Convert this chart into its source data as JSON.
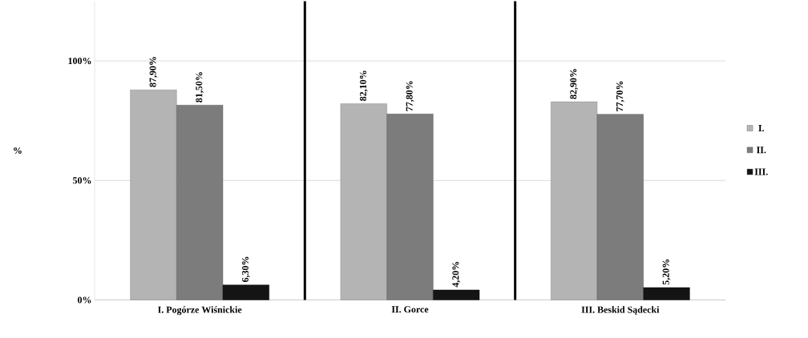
{
  "chart_data": {
    "type": "bar",
    "ylabel": "%",
    "categories": [
      "I. Pogórze Wiśnickie",
      "II. Gorce",
      "III. Beskid Sądecki"
    ],
    "series": [
      {
        "name": "I.",
        "color": "#b4b4b4",
        "values": [
          87.9,
          82.1,
          82.9
        ],
        "value_labels": [
          "87,90%",
          "82,10%",
          "82,90%"
        ]
      },
      {
        "name": "II.",
        "color": "#7c7c7c",
        "values": [
          81.5,
          77.8,
          77.7
        ],
        "value_labels": [
          "81,50%",
          "77,80%",
          "77,70%"
        ]
      },
      {
        "name": "III.",
        "color": "#141414",
        "values": [
          6.3,
          4.2,
          5.2
        ],
        "value_labels": [
          "6,30%",
          "4,20%",
          "5,20%"
        ]
      }
    ],
    "ylim": [
      0,
      125
    ],
    "yticks": [
      {
        "value": 0,
        "label": "0%"
      },
      {
        "value": 50,
        "label": "50%"
      },
      {
        "value": 100,
        "label": "100%"
      }
    ],
    "grid": "y",
    "legend": "right"
  }
}
